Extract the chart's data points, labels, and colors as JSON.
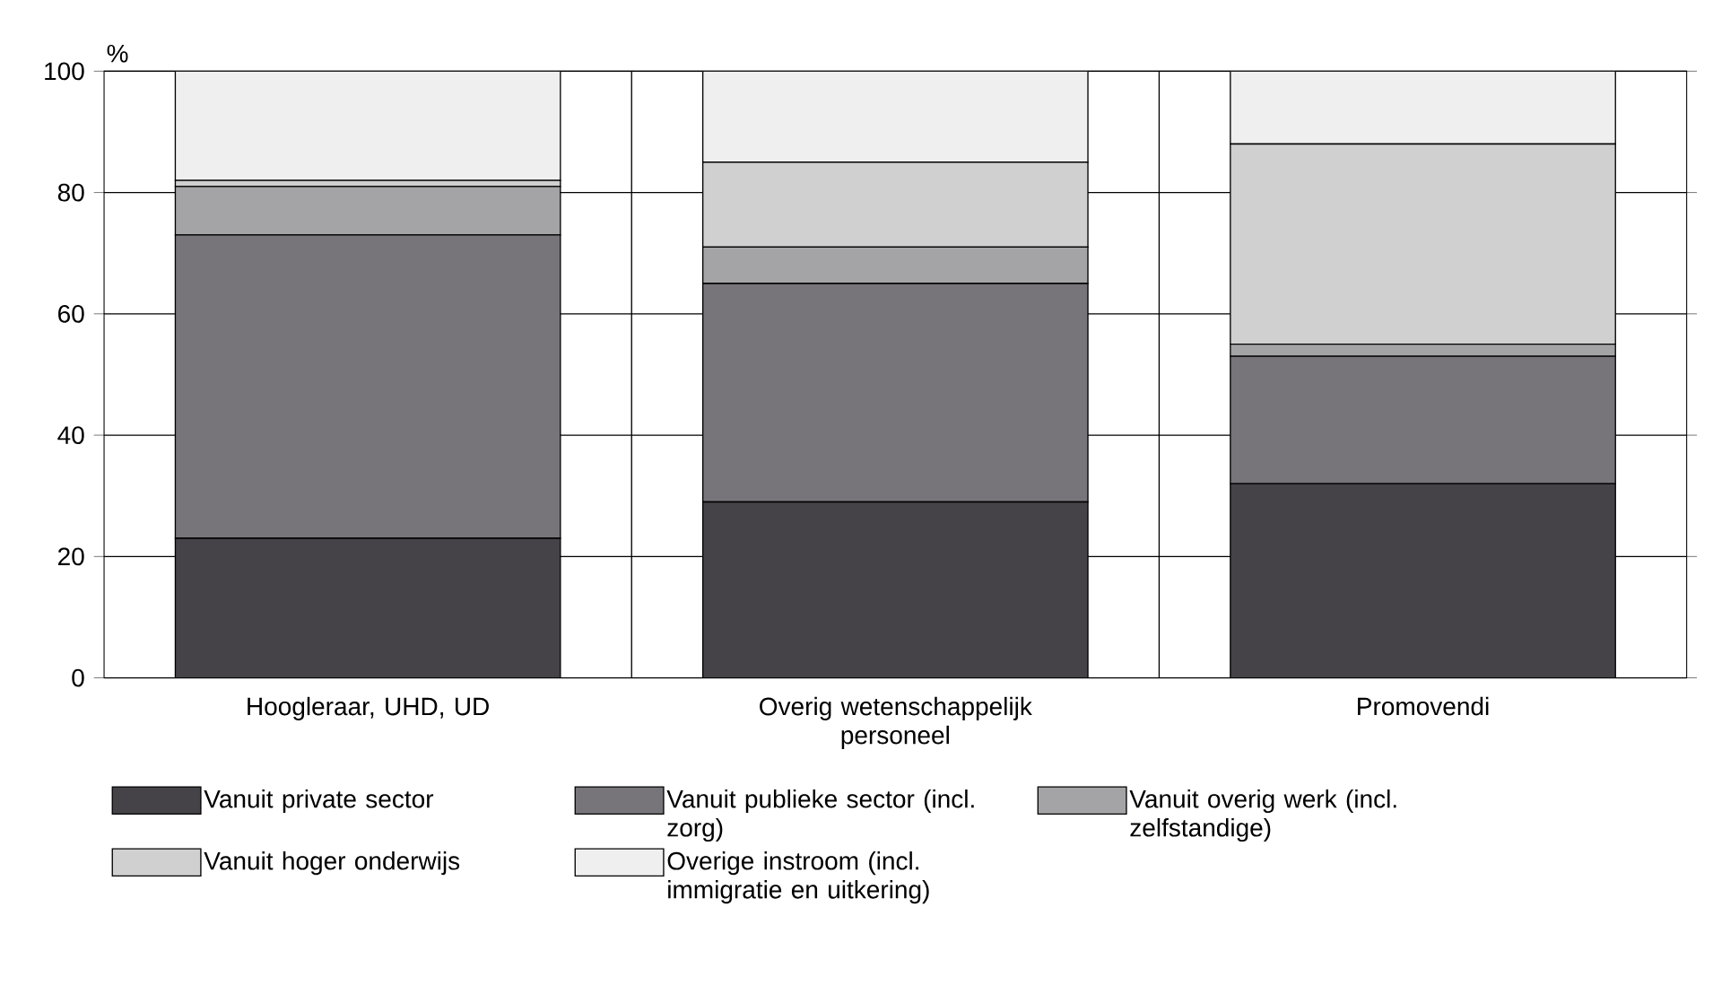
{
  "chart_data": {
    "type": "bar",
    "stacked": true,
    "ylabel": "%",
    "categories": [
      "Hoogleraar, UHD, UD",
      "Overig wetenschappelijk personeel",
      "Promovendi"
    ],
    "series": [
      {
        "name": "Vanuit private sector",
        "color": "#454348",
        "values": [
          23,
          29,
          32
        ]
      },
      {
        "name": "Vanuit publieke sector (incl. zorg)",
        "color": "#77757a",
        "values": [
          50,
          36,
          21
        ]
      },
      {
        "name": "Vanuit overig werk (incl. zelfstandige)",
        "color": "#a4a3a6",
        "values": [
          8,
          6,
          2
        ]
      },
      {
        "name": "Vanuit hoger onderwijs",
        "color": "#d0d0d1",
        "values": [
          1,
          14,
          33
        ]
      },
      {
        "name": "Overige instroom (incl. immigratie en uitkering)",
        "color": "#efefef",
        "values": [
          18,
          15,
          12
        ]
      }
    ],
    "ylim": [
      0,
      100
    ],
    "yticks": [
      0,
      20,
      40,
      60,
      80,
      100
    ],
    "grid": true,
    "legend": "bottom"
  }
}
